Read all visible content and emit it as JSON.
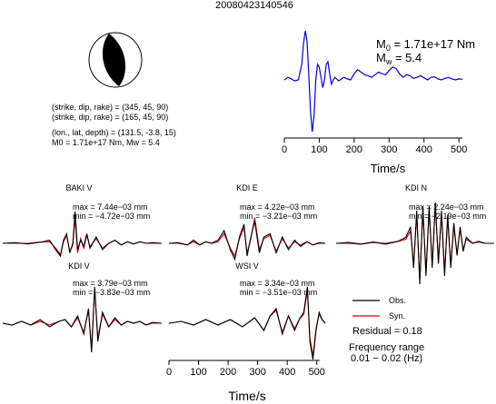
{
  "title": "20080423140546",
  "mechanism": {
    "line1": "(strike, dip, rake) = (345, 45, 90)",
    "line2": "(strike, dip, rake) = (165, 45, 90)",
    "line3": "(lon., lat, depth) = (131.5, -3.8, 15)",
    "line4": "M0 = 1.71e+17 Nm, Mw = 5.4"
  },
  "stf": {
    "m0_prefix": "M",
    "m0_sub": "0",
    "m0_value": " = 1.71e+17 Nm",
    "mw_prefix": "M",
    "mw_sub": "w",
    "mw_value": " = 5.4",
    "xlabel": "Time/s"
  },
  "waveforms_xlabel": "Time/s",
  "panels": [
    {
      "station": "BAKI V",
      "max": "max = 7.44e−03 mm",
      "min": "min = −4.72e−03 mm"
    },
    {
      "station": "KDI E",
      "max": "max = 4.22e−03 mm",
      "min": "min = −3.21e−03 mm"
    },
    {
      "station": "KDI N",
      "max": "max = 2.24e−03 mm",
      "min": "min = −2.19e−03 mm"
    },
    {
      "station": "KDI V",
      "max": "max = 3.79e−03 mm",
      "min": "min = −3.83e−03 mm"
    },
    {
      "station": "WSI V",
      "max": "max = 3.34e−03 mm",
      "min": "min = −3.51e−03 mm"
    }
  ],
  "legend": {
    "obs": "Obs.",
    "syn": "Syn.",
    "residual": "Residual = 0.18",
    "freq_label": "Frequency range",
    "freq_value": "0.01 − 0.02 (Hz)"
  },
  "colors": {
    "obs": "#000000",
    "syn": "#dd0000",
    "stf": "#0000dd",
    "beachball": "#000000"
  },
  "chart_data": [
    {
      "type": "line",
      "name": "source-time-function",
      "xlim": [
        0,
        510
      ],
      "xticks": [
        0,
        100,
        200,
        300,
        400,
        500
      ],
      "xlabel": "Time/s",
      "series": [
        {
          "name": "",
          "x": [
            0,
            10,
            20,
            30,
            40,
            50,
            55,
            60,
            65,
            70,
            75,
            80,
            85,
            90,
            95,
            100,
            105,
            110,
            115,
            120,
            125,
            130,
            135,
            140,
            145,
            150,
            155,
            160,
            170,
            180,
            190,
            200,
            210,
            220,
            230,
            240,
            250,
            260,
            270,
            280,
            290,
            300,
            310,
            320,
            330,
            340,
            350,
            360,
            370,
            380,
            390,
            400,
            410,
            420,
            430,
            440,
            450,
            460,
            470,
            480,
            490,
            500,
            510
          ],
          "y": [
            0.0,
            0.05,
            0.02,
            -0.02,
            0.0,
            0.3,
            0.7,
            0.95,
            0.75,
            0.1,
            -0.6,
            -1.0,
            -0.7,
            0.0,
            0.3,
            0.25,
            0.05,
            -0.15,
            0.0,
            0.3,
            0.35,
            0.1,
            -0.08,
            0.0,
            0.05,
            0.02,
            -0.02,
            0.0,
            0.05,
            0.02,
            0.0,
            0.12,
            0.2,
            0.15,
            0.1,
            0.08,
            0.05,
            0.1,
            0.15,
            0.12,
            0.1,
            0.18,
            0.25,
            0.22,
            0.12,
            0.05,
            0.1,
            0.08,
            0.03,
            0.05,
            0.08,
            0.04,
            0.0,
            0.05,
            0.06,
            0.02,
            0.0,
            0.03,
            0.05,
            0.02,
            0.0,
            0.02,
            0.01
          ]
        }
      ]
    },
    {
      "type": "line",
      "name": "waveform-comparison",
      "xlim": [
        0,
        510
      ],
      "xticks": [
        0,
        100,
        200,
        300,
        400,
        500
      ],
      "xlabel": "Time/s",
      "panels": [
        {
          "station": "BAKI V",
          "obs": {
            "x": [
              0,
              40,
              80,
              130,
              150,
              170,
              185,
              195,
              205,
              215,
              225,
              232,
              240,
              250,
              260,
              270,
              280,
              300,
              320,
              340,
              360,
              380,
              400,
              420,
              440,
              460,
              480,
              510
            ],
            "y": [
              0.0,
              0.02,
              -0.02,
              0.05,
              0.1,
              -0.2,
              -0.4,
              0.1,
              0.3,
              -0.3,
              0.0,
              1.0,
              -0.2,
              0.1,
              -0.1,
              0.3,
              -0.15,
              0.2,
              -0.2,
              0.0,
              0.1,
              -0.05,
              0.05,
              -0.02,
              0.05,
              0.0,
              0.02,
              0.0
            ]
          },
          "syn": {
            "x": [
              0,
              40,
              80,
              130,
              150,
              170,
              185,
              195,
              205,
              215,
              225,
              232,
              240,
              250,
              260,
              270,
              280,
              300,
              320,
              340,
              360,
              380,
              400,
              420,
              440,
              460,
              480,
              510
            ],
            "y": [
              0.0,
              0.0,
              0.0,
              0.05,
              0.05,
              -0.15,
              -0.35,
              0.05,
              0.25,
              -0.25,
              -0.05,
              0.8,
              -0.3,
              0.15,
              -0.15,
              0.25,
              -0.1,
              0.15,
              -0.15,
              0.0,
              0.1,
              -0.05,
              0.05,
              -0.02,
              0.05,
              0.0,
              0.0,
              0.0
            ]
          }
        },
        {
          "station": "KDI E",
          "obs": {
            "x": [
              0,
              30,
              60,
              80,
              100,
              120,
              140,
              160,
              180,
              200,
              215,
              230,
              245,
              255,
              265,
              280,
              295,
              310,
              330,
              350,
              370,
              390,
              410,
              430,
              450,
              470,
              490,
              510
            ],
            "y": [
              0.0,
              0.02,
              -0.05,
              0.1,
              -0.05,
              0.05,
              0.0,
              0.1,
              0.4,
              -0.2,
              -0.5,
              0.2,
              0.6,
              -0.4,
              0.1,
              0.7,
              -0.3,
              0.2,
              0.3,
              -0.3,
              0.2,
              -0.2,
              0.1,
              -0.1,
              0.05,
              -0.05,
              0.02,
              0.0
            ]
          },
          "syn": {
            "x": [
              0,
              30,
              60,
              80,
              100,
              120,
              140,
              160,
              180,
              200,
              215,
              230,
              245,
              255,
              265,
              280,
              295,
              310,
              330,
              350,
              370,
              390,
              410,
              430,
              450,
              470,
              490,
              510
            ],
            "y": [
              0.0,
              0.0,
              -0.05,
              0.05,
              -0.05,
              0.05,
              0.0,
              0.05,
              0.3,
              -0.15,
              -0.4,
              0.15,
              0.5,
              -0.3,
              0.05,
              0.8,
              -0.2,
              0.15,
              0.25,
              -0.25,
              0.15,
              -0.15,
              0.05,
              -0.05,
              0.05,
              -0.05,
              0.0,
              0.0
            ]
          }
        },
        {
          "station": "KDI N",
          "obs": {
            "x": [
              0,
              40,
              80,
              120,
              160,
              200,
              225,
              240,
              250,
              260,
              270,
              280,
              290,
              300,
              310,
              320,
              330,
              340,
              350,
              360,
              370,
              380,
              390,
              400,
              410,
              420,
              440,
              460,
              480,
              510
            ],
            "y": [
              0.0,
              0.02,
              -0.02,
              0.03,
              -0.02,
              0.05,
              0.15,
              0.4,
              -0.6,
              0.8,
              -1.0,
              0.9,
              -0.8,
              0.9,
              -0.6,
              1.0,
              -0.5,
              0.8,
              -0.8,
              0.7,
              -0.6,
              0.5,
              -0.3,
              0.4,
              -0.2,
              0.15,
              0.0,
              0.05,
              0.0,
              0.0
            ]
          },
          "syn": {
            "x": [
              0,
              40,
              80,
              120,
              160,
              200,
              225,
              240,
              250,
              260,
              270,
              280,
              290,
              300,
              310,
              320,
              330,
              340,
              350,
              360,
              370,
              380,
              390,
              400,
              410,
              420,
              440,
              460,
              480,
              510
            ],
            "y": [
              0.0,
              0.0,
              -0.02,
              0.02,
              0.0,
              0.05,
              0.1,
              0.3,
              -0.5,
              0.7,
              -0.9,
              0.8,
              -0.7,
              0.8,
              -0.5,
              0.9,
              -0.4,
              0.7,
              -0.7,
              0.6,
              -0.5,
              0.4,
              -0.25,
              0.35,
              -0.15,
              0.1,
              0.0,
              0.03,
              0.0,
              0.0
            ]
          }
        },
        {
          "station": "KDI V",
          "obs": {
            "x": [
              0,
              30,
              60,
              90,
              120,
              150,
              180,
              200,
              220,
              240,
              260,
              275,
              285,
              295,
              305,
              320,
              340,
              360,
              380,
              400,
              420,
              440,
              460,
              480,
              510
            ],
            "y": [
              0.0,
              -0.05,
              0.05,
              -0.05,
              0.1,
              -0.1,
              0.05,
              0.1,
              -0.1,
              0.2,
              -0.3,
              0.4,
              -0.8,
              1.0,
              -0.5,
              0.3,
              -0.1,
              0.15,
              -0.05,
              0.05,
              0.0,
              0.05,
              -0.05,
              0.02,
              0.0
            ]
          },
          "syn": {
            "x": [
              0,
              30,
              60,
              90,
              120,
              150,
              180,
              200,
              220,
              240,
              260,
              275,
              285,
              295,
              305,
              320,
              340,
              360,
              380,
              400,
              420,
              440,
              460,
              480,
              510
            ],
            "y": [
              0.0,
              -0.05,
              0.05,
              -0.05,
              0.05,
              -0.05,
              0.05,
              0.1,
              -0.1,
              0.15,
              -0.25,
              0.35,
              -0.7,
              0.95,
              -0.4,
              0.25,
              -0.1,
              0.1,
              -0.05,
              0.05,
              0.0,
              0.05,
              -0.05,
              0.0,
              0.0
            ]
          }
        },
        {
          "station": "WSI V",
          "obs": {
            "x": [
              0,
              40,
              80,
              120,
              160,
              200,
              240,
              280,
              310,
              330,
              350,
              370,
              390,
              410,
              425,
              440,
              452,
              460,
              470,
              480,
              490,
              500,
              510
            ],
            "y": [
              0.0,
              0.05,
              -0.05,
              0.1,
              -0.05,
              0.1,
              -0.1,
              0.15,
              -0.2,
              0.2,
              0.4,
              -0.3,
              0.2,
              -0.2,
              0.1,
              0.3,
              1.0,
              -0.5,
              -1.0,
              -0.2,
              0.3,
              0.1,
              0.0
            ]
          },
          "syn": {
            "x": [
              0,
              40,
              80,
              120,
              160,
              200,
              240,
              280,
              310,
              330,
              350,
              370,
              390,
              410,
              425,
              440,
              452,
              460,
              470,
              480,
              490,
              500,
              510
            ],
            "y": [
              0.0,
              0.05,
              -0.05,
              0.1,
              -0.05,
              0.1,
              -0.1,
              0.15,
              -0.2,
              0.2,
              0.35,
              -0.25,
              0.2,
              -0.15,
              0.1,
              0.25,
              0.9,
              -0.4,
              -0.9,
              -0.15,
              0.25,
              0.1,
              0.0
            ]
          }
        }
      ]
    }
  ]
}
